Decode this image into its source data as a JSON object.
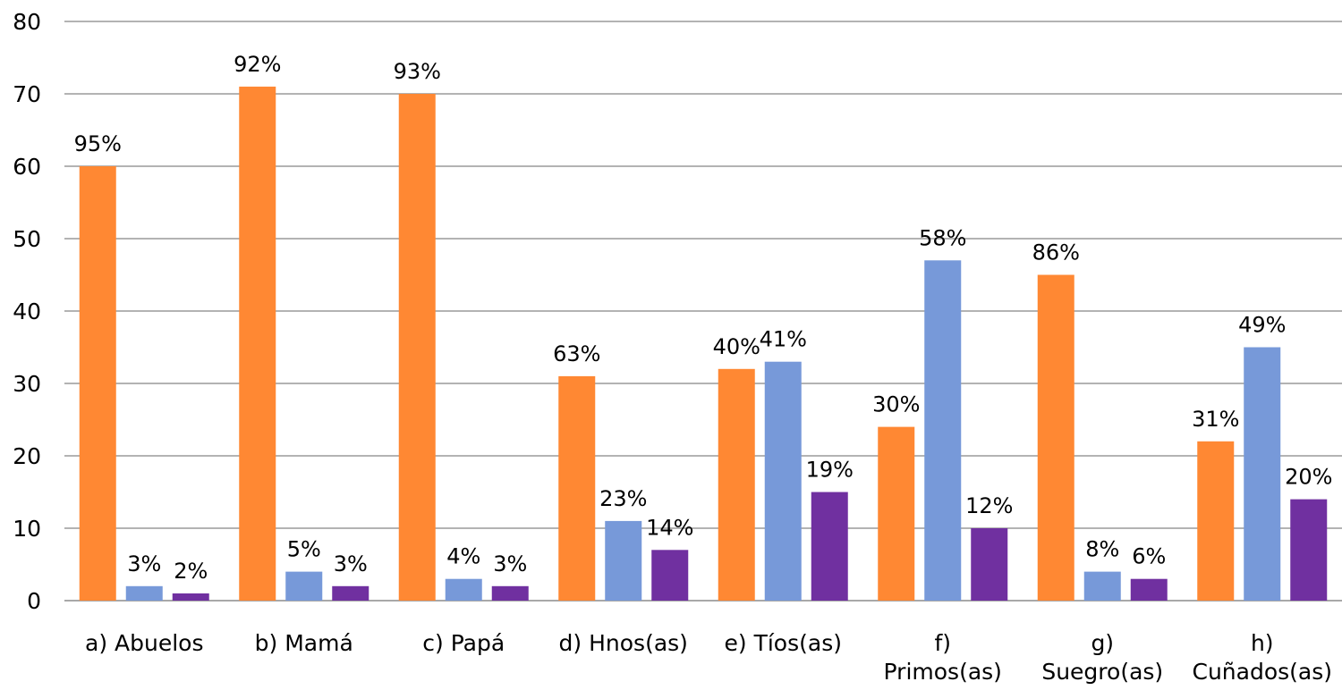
{
  "chart_data": {
    "type": "bar",
    "title": "",
    "xlabel": "",
    "ylabel": "",
    "ylim": [
      0,
      80
    ],
    "yticks": [
      "0",
      "10",
      "20",
      "30",
      "40",
      "50",
      "60",
      "70",
      "80"
    ],
    "grid": true,
    "legend": "none",
    "categories": [
      [
        "a) Abuelos"
      ],
      [
        "b) Mamá"
      ],
      [
        "c) Papá"
      ],
      [
        "d) Hnos(as)"
      ],
      [
        "e) Tíos(as)"
      ],
      [
        "f)",
        "Primos(as)"
      ],
      [
        "g)",
        "Suegro(as)"
      ],
      [
        "h)",
        "Cuñados(as)"
      ]
    ],
    "series": [
      {
        "color": "#FF8833",
        "values": [
          60,
          71,
          70,
          31,
          32,
          24,
          45,
          22
        ],
        "labels": [
          "95%",
          "92%",
          "93%",
          "63%",
          "40%",
          "30%",
          "86%",
          "31%"
        ]
      },
      {
        "color": "#7799D9",
        "values": [
          2,
          4,
          3,
          11,
          33,
          47,
          4,
          35
        ],
        "labels": [
          "3%",
          "5%",
          "4%",
          "23%",
          "41%",
          "58%",
          "8%",
          "49%"
        ]
      },
      {
        "color": "#7030A0",
        "values": [
          1,
          2,
          2,
          7,
          15,
          10,
          3,
          14
        ],
        "labels": [
          "2%",
          "3%",
          "3%",
          "14%",
          "19%",
          "12%",
          "6%",
          "20%"
        ]
      }
    ]
  }
}
